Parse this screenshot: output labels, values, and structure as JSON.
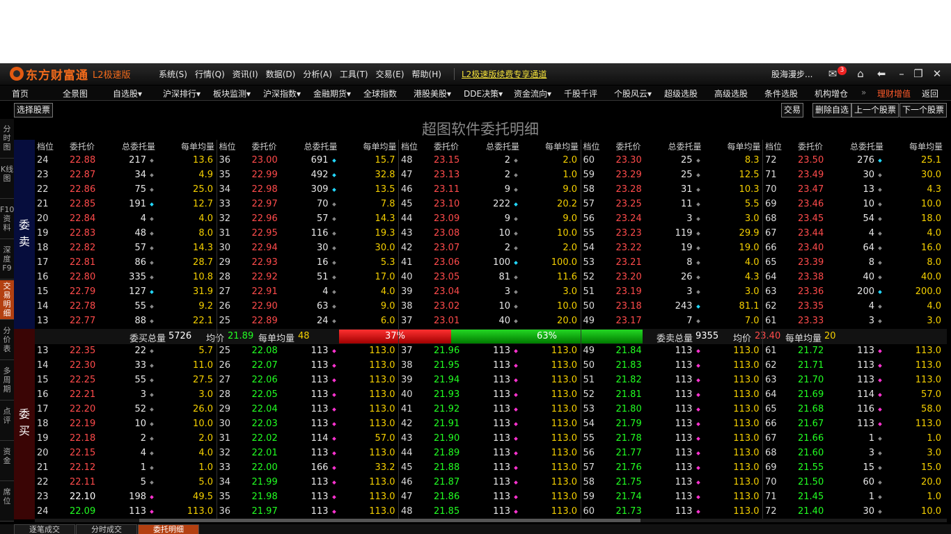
{
  "titlebar": {
    "logo": "东方财富通",
    "edition": "L2极速版",
    "menu": [
      "系统(S)",
      "行情(Q)",
      "资讯(I)",
      "数据(D)",
      "分析(A)",
      "工具(T)",
      "交易(E)",
      "帮助(H)"
    ],
    "promo": "L2极速版续费专享通道",
    "user": "股海漫步...",
    "mail_count": "3"
  },
  "nav": [
    "首页",
    "全景图",
    "自选股▾",
    "沪深排行▾",
    "板块监测▾",
    "沪深指数▾",
    "金融期货▾",
    "全球指数",
    "港股美股▾",
    "DDE决策▾",
    "资金流向▾",
    "千股千评",
    "个股风云▾",
    "超级选股",
    "高级选股",
    "条件选股",
    "机构增仓",
    "»",
    "理财增值",
    "返回"
  ],
  "toolbar": {
    "select_stock": "选择股票",
    "trade": "交易",
    "delete_watch": "删除自选",
    "prev_stock": "上一个股票",
    "next_stock": "下一个股票"
  },
  "left_tabs": [
    "分时图",
    "K线图",
    "F10资料",
    "深度F9",
    "交易明细",
    "分价表",
    "多周期",
    "点评",
    "资金",
    "席位"
  ],
  "page_title": "超图软件委托明细",
  "headers": [
    "档位",
    "委托价",
    "总委托量",
    "每单均量"
  ],
  "side_labels": {
    "sell": [
      "委",
      "卖"
    ],
    "buy": [
      "委",
      "买"
    ]
  },
  "sell_rows": [
    [
      [
        "24",
        "22.88",
        "217",
        "g",
        "13.6"
      ],
      [
        "36",
        "23.00",
        "691",
        "c",
        "15.7"
      ],
      [
        "48",
        "23.15",
        "2",
        "g",
        "2.0"
      ],
      [
        "60",
        "23.30",
        "25",
        "g",
        "8.3"
      ],
      [
        "72",
        "23.50",
        "276",
        "c",
        "25.1"
      ]
    ],
    [
      [
        "23",
        "22.87",
        "34",
        "g",
        "4.9"
      ],
      [
        "35",
        "22.99",
        "492",
        "c",
        "32.8"
      ],
      [
        "47",
        "23.13",
        "2",
        "g",
        "1.0"
      ],
      [
        "59",
        "23.29",
        "25",
        "g",
        "12.5"
      ],
      [
        "71",
        "23.49",
        "30",
        "g",
        "30.0"
      ]
    ],
    [
      [
        "22",
        "22.86",
        "75",
        "g",
        "25.0"
      ],
      [
        "34",
        "22.98",
        "309",
        "c",
        "13.5"
      ],
      [
        "46",
        "23.11",
        "9",
        "g",
        "9.0"
      ],
      [
        "58",
        "23.28",
        "31",
        "g",
        "10.3"
      ],
      [
        "70",
        "23.47",
        "13",
        "g",
        "4.3"
      ]
    ],
    [
      [
        "21",
        "22.85",
        "191",
        "c",
        "12.7"
      ],
      [
        "33",
        "22.97",
        "70",
        "g",
        "7.8"
      ],
      [
        "45",
        "23.10",
        "222",
        "c",
        "20.2"
      ],
      [
        "57",
        "23.25",
        "11",
        "g",
        "5.5"
      ],
      [
        "69",
        "23.46",
        "10",
        "g",
        "10.0"
      ]
    ],
    [
      [
        "20",
        "22.84",
        "4",
        "g",
        "4.0"
      ],
      [
        "32",
        "22.96",
        "57",
        "g",
        "14.3"
      ],
      [
        "44",
        "23.09",
        "9",
        "g",
        "9.0"
      ],
      [
        "56",
        "23.24",
        "3",
        "g",
        "3.0"
      ],
      [
        "68",
        "23.45",
        "54",
        "g",
        "18.0"
      ]
    ],
    [
      [
        "19",
        "22.83",
        "48",
        "g",
        "8.0"
      ],
      [
        "31",
        "22.95",
        "116",
        "g",
        "19.3"
      ],
      [
        "43",
        "23.08",
        "10",
        "g",
        "10.0"
      ],
      [
        "55",
        "23.23",
        "119",
        "g",
        "29.9"
      ],
      [
        "67",
        "23.44",
        "4",
        "g",
        "4.0"
      ]
    ],
    [
      [
        "18",
        "22.82",
        "57",
        "g",
        "14.3"
      ],
      [
        "30",
        "22.94",
        "30",
        "g",
        "30.0"
      ],
      [
        "42",
        "23.07",
        "2",
        "g",
        "2.0"
      ],
      [
        "54",
        "23.22",
        "19",
        "g",
        "19.0"
      ],
      [
        "66",
        "23.40",
        "64",
        "g",
        "16.0"
      ]
    ],
    [
      [
        "17",
        "22.81",
        "86",
        "g",
        "28.7"
      ],
      [
        "29",
        "22.93",
        "16",
        "g",
        "5.3"
      ],
      [
        "41",
        "23.06",
        "100",
        "c",
        "100.0"
      ],
      [
        "53",
        "23.21",
        "8",
        "g",
        "4.0"
      ],
      [
        "65",
        "23.39",
        "8",
        "g",
        "8.0"
      ]
    ],
    [
      [
        "16",
        "22.80",
        "335",
        "g",
        "10.8"
      ],
      [
        "28",
        "22.92",
        "51",
        "g",
        "17.0"
      ],
      [
        "40",
        "23.05",
        "81",
        "g",
        "11.6"
      ],
      [
        "52",
        "23.20",
        "26",
        "g",
        "4.3"
      ],
      [
        "64",
        "23.38",
        "40",
        "g",
        "40.0"
      ]
    ],
    [
      [
        "15",
        "22.79",
        "127",
        "c",
        "31.9"
      ],
      [
        "27",
        "22.91",
        "4",
        "g",
        "4.0"
      ],
      [
        "39",
        "23.04",
        "3",
        "g",
        "3.0"
      ],
      [
        "51",
        "23.19",
        "3",
        "g",
        "3.0"
      ],
      [
        "63",
        "23.36",
        "200",
        "c",
        "200.0"
      ]
    ],
    [
      [
        "14",
        "22.78",
        "55",
        "g",
        "9.2"
      ],
      [
        "26",
        "22.90",
        "63",
        "g",
        "9.0"
      ],
      [
        "38",
        "23.02",
        "10",
        "g",
        "10.0"
      ],
      [
        "50",
        "23.18",
        "243",
        "c",
        "81.1"
      ],
      [
        "62",
        "23.35",
        "4",
        "g",
        "4.0"
      ]
    ],
    [
      [
        "13",
        "22.77",
        "88",
        "g",
        "22.1"
      ],
      [
        "25",
        "22.89",
        "24",
        "g",
        "6.0"
      ],
      [
        "37",
        "23.01",
        "40",
        "g",
        "20.0"
      ],
      [
        "49",
        "23.17",
        "7",
        "g",
        "7.0"
      ],
      [
        "61",
        "23.33",
        "3",
        "g",
        "3.0"
      ]
    ]
  ],
  "summary": {
    "buy_total_label": "委买总量",
    "buy_total": "5726",
    "buy_avg_label": "均价",
    "buy_avg": "21.89",
    "buy_per_label": "每单均量",
    "buy_per": "48",
    "red_pct": "37%",
    "green_pct": "63%",
    "red_ratio": 0.37,
    "green_ratio": 0.63,
    "sell_total_label": "委卖总量",
    "sell_total": "9355",
    "sell_avg_label": "均价",
    "sell_avg": "23.40",
    "sell_per_label": "每单均量",
    "sell_per": "20"
  },
  "buy_rows": [
    [
      [
        "13",
        "22.35",
        "r",
        "22",
        "g",
        "5.7"
      ],
      [
        "25",
        "22.08",
        "gr",
        "113",
        "m",
        "113.0"
      ],
      [
        "37",
        "21.96",
        "gr",
        "113",
        "m",
        "113.0"
      ],
      [
        "49",
        "21.84",
        "gr",
        "113",
        "m",
        "113.0"
      ],
      [
        "61",
        "21.72",
        "gr",
        "113",
        "m",
        "113.0"
      ]
    ],
    [
      [
        "14",
        "22.30",
        "r",
        "33",
        "g",
        "11.0"
      ],
      [
        "26",
        "22.07",
        "gr",
        "113",
        "m",
        "113.0"
      ],
      [
        "38",
        "21.95",
        "gr",
        "113",
        "m",
        "113.0"
      ],
      [
        "50",
        "21.83",
        "gr",
        "113",
        "m",
        "113.0"
      ],
      [
        "62",
        "21.71",
        "gr",
        "113",
        "m",
        "113.0"
      ]
    ],
    [
      [
        "15",
        "22.25",
        "r",
        "55",
        "g",
        "27.5"
      ],
      [
        "27",
        "22.06",
        "gr",
        "113",
        "m",
        "113.0"
      ],
      [
        "39",
        "21.94",
        "gr",
        "113",
        "m",
        "113.0"
      ],
      [
        "51",
        "21.82",
        "gr",
        "113",
        "m",
        "113.0"
      ],
      [
        "63",
        "21.70",
        "gr",
        "113",
        "m",
        "113.0"
      ]
    ],
    [
      [
        "16",
        "22.21",
        "r",
        "3",
        "g",
        "3.0"
      ],
      [
        "28",
        "22.05",
        "gr",
        "113",
        "m",
        "113.0"
      ],
      [
        "40",
        "21.93",
        "gr",
        "113",
        "m",
        "113.0"
      ],
      [
        "52",
        "21.81",
        "gr",
        "113",
        "m",
        "113.0"
      ],
      [
        "64",
        "21.69",
        "gr",
        "114",
        "m",
        "57.0"
      ]
    ],
    [
      [
        "17",
        "22.20",
        "r",
        "52",
        "g",
        "26.0"
      ],
      [
        "29",
        "22.04",
        "gr",
        "113",
        "m",
        "113.0"
      ],
      [
        "41",
        "21.92",
        "gr",
        "113",
        "m",
        "113.0"
      ],
      [
        "53",
        "21.80",
        "gr",
        "113",
        "m",
        "113.0"
      ],
      [
        "65",
        "21.68",
        "gr",
        "116",
        "m",
        "58.0"
      ]
    ],
    [
      [
        "18",
        "22.19",
        "r",
        "10",
        "g",
        "10.0"
      ],
      [
        "30",
        "22.03",
        "gr",
        "113",
        "m",
        "113.0"
      ],
      [
        "42",
        "21.91",
        "gr",
        "113",
        "m",
        "113.0"
      ],
      [
        "54",
        "21.79",
        "gr",
        "113",
        "m",
        "113.0"
      ],
      [
        "66",
        "21.67",
        "gr",
        "113",
        "m",
        "113.0"
      ]
    ],
    [
      [
        "19",
        "22.18",
        "r",
        "2",
        "g",
        "2.0"
      ],
      [
        "31",
        "22.02",
        "gr",
        "114",
        "m",
        "57.0"
      ],
      [
        "43",
        "21.90",
        "gr",
        "113",
        "m",
        "113.0"
      ],
      [
        "55",
        "21.78",
        "gr",
        "113",
        "m",
        "113.0"
      ],
      [
        "67",
        "21.66",
        "gr",
        "1",
        "g",
        "1.0"
      ]
    ],
    [
      [
        "20",
        "22.15",
        "r",
        "4",
        "g",
        "4.0"
      ],
      [
        "32",
        "22.01",
        "gr",
        "113",
        "m",
        "113.0"
      ],
      [
        "44",
        "21.89",
        "gr",
        "113",
        "m",
        "113.0"
      ],
      [
        "56",
        "21.77",
        "gr",
        "113",
        "m",
        "113.0"
      ],
      [
        "68",
        "21.60",
        "gr",
        "3",
        "g",
        "3.0"
      ]
    ],
    [
      [
        "21",
        "22.12",
        "r",
        "1",
        "g",
        "1.0"
      ],
      [
        "33",
        "22.00",
        "gr",
        "166",
        "m",
        "33.2"
      ],
      [
        "45",
        "21.88",
        "gr",
        "113",
        "m",
        "113.0"
      ],
      [
        "57",
        "21.76",
        "gr",
        "113",
        "m",
        "113.0"
      ],
      [
        "69",
        "21.55",
        "gr",
        "15",
        "g",
        "15.0"
      ]
    ],
    [
      [
        "22",
        "22.11",
        "r",
        "5",
        "g",
        "5.0"
      ],
      [
        "34",
        "21.99",
        "gr",
        "113",
        "m",
        "113.0"
      ],
      [
        "46",
        "21.87",
        "gr",
        "113",
        "m",
        "113.0"
      ],
      [
        "58",
        "21.75",
        "gr",
        "113",
        "m",
        "113.0"
      ],
      [
        "70",
        "21.50",
        "gr",
        "60",
        "g",
        "20.0"
      ]
    ],
    [
      [
        "23",
        "22.10",
        "w",
        "198",
        "m",
        "49.5"
      ],
      [
        "35",
        "21.98",
        "gr",
        "113",
        "m",
        "113.0"
      ],
      [
        "47",
        "21.86",
        "gr",
        "113",
        "m",
        "113.0"
      ],
      [
        "59",
        "21.74",
        "gr",
        "113",
        "m",
        "113.0"
      ],
      [
        "71",
        "21.45",
        "gr",
        "1",
        "g",
        "1.0"
      ]
    ],
    [
      [
        "24",
        "22.09",
        "gr",
        "113",
        "m",
        "113.0"
      ],
      [
        "36",
        "21.97",
        "gr",
        "113",
        "m",
        "113.0"
      ],
      [
        "48",
        "21.85",
        "gr",
        "113",
        "m",
        "113.0"
      ],
      [
        "60",
        "21.73",
        "gr",
        "113",
        "m",
        "113.0"
      ],
      [
        "72",
        "21.40",
        "gr",
        "30",
        "g",
        "10.0"
      ]
    ]
  ],
  "bottom_tabs": [
    "逐笔成交",
    "分时成交",
    "委托明细"
  ],
  "colors": {
    "sell_price": "#ff4b4b",
    "buy_price_green": "#22ff22",
    "avg_yellow": "#f5d000",
    "accent": "#b34011"
  }
}
